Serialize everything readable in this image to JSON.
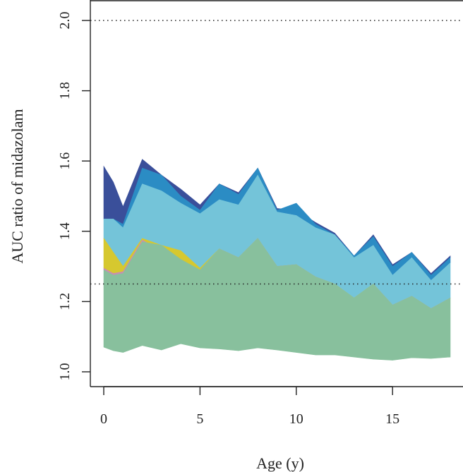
{
  "chart_data": {
    "type": "area",
    "xlabel": "Age (y)",
    "ylabel": "AUC ratio of midazolam",
    "xlim": [
      -0.7,
      18.7
    ],
    "ylim": [
      0.96,
      2.04
    ],
    "x_ticks": [
      0,
      5,
      10,
      15
    ],
    "y_ticks": [
      1.0,
      1.2,
      1.4,
      1.6,
      1.8,
      2.0
    ],
    "y_tick_labels": [
      "1.0",
      "1.2",
      "1.4",
      "1.6",
      "1.8",
      "2.0"
    ],
    "reference_lines": [
      2.0,
      1.25
    ],
    "grid": false,
    "x": [
      0,
      0.5,
      1,
      2,
      3,
      4,
      5,
      6,
      7,
      8,
      9,
      10,
      11,
      12,
      13,
      14,
      15,
      16,
      17,
      18
    ],
    "bands": [
      {
        "color": "#3a4f9a",
        "upper": [
          1.585,
          1.54,
          1.47,
          1.605,
          1.56,
          1.52,
          1.475,
          1.535,
          1.51,
          1.58,
          1.465,
          1.46,
          1.425,
          1.395,
          1.33,
          1.39,
          1.305,
          1.34,
          1.28,
          1.33
        ],
        "lower": [
          1.435,
          1.435,
          1.42,
          1.56,
          1.54,
          1.49,
          1.46,
          1.5,
          1.485,
          1.56,
          1.46,
          1.455,
          1.42,
          1.39,
          1.325,
          1.38,
          1.3,
          1.335,
          1.275,
          1.325
        ]
      },
      {
        "color": "#2b8cc4",
        "upper": [
          1.435,
          1.435,
          1.42,
          1.58,
          1.56,
          1.5,
          1.46,
          1.535,
          1.505,
          1.58,
          1.46,
          1.48,
          1.42,
          1.39,
          1.33,
          1.385,
          1.3,
          1.34,
          1.275,
          1.325
        ],
        "lower": [
          1.435,
          1.435,
          1.41,
          1.535,
          1.515,
          1.48,
          1.45,
          1.49,
          1.475,
          1.56,
          1.455,
          1.445,
          1.41,
          1.39,
          1.325,
          1.36,
          1.275,
          1.325,
          1.26,
          1.31
        ]
      },
      {
        "color": "#74c4d9",
        "upper": [
          1.435,
          1.435,
          1.41,
          1.535,
          1.515,
          1.48,
          1.45,
          1.49,
          1.475,
          1.56,
          1.455,
          1.445,
          1.41,
          1.39,
          1.325,
          1.36,
          1.275,
          1.325,
          1.26,
          1.31
        ],
        "lower": [
          1.38,
          1.34,
          1.3,
          1.375,
          1.36,
          1.345,
          1.295,
          1.35,
          1.325,
          1.38,
          1.3,
          1.305,
          1.27,
          1.25,
          1.21,
          1.25,
          1.19,
          1.215,
          1.18,
          1.21
        ]
      },
      {
        "color": "#d6c82f",
        "upper": [
          1.38,
          1.34,
          1.3,
          1.38,
          1.36,
          1.345,
          1.295,
          1.35,
          1.325,
          1.38,
          1.3,
          1.305,
          1.27,
          1.25,
          1.21,
          1.25,
          1.19,
          1.215,
          1.18,
          1.21
        ],
        "lower": [
          1.295,
          1.28,
          1.285,
          1.375,
          1.345,
          1.315,
          1.285,
          1.35,
          1.325,
          1.38,
          1.3,
          1.305,
          1.27,
          1.25,
          1.205,
          1.25,
          1.19,
          1.215,
          1.18,
          1.21
        ]
      },
      {
        "color": "#c88fb0",
        "upper": [
          1.295,
          1.28,
          1.285,
          1.375,
          1.345,
          1.32,
          1.285,
          1.35,
          1.325,
          1.38,
          1.3,
          1.305,
          1.27,
          1.25,
          1.205,
          1.25,
          1.19,
          1.215,
          1.18,
          1.21
        ],
        "lower": [
          1.29,
          1.275,
          1.28,
          1.37,
          1.34,
          1.31,
          1.28,
          1.35,
          1.325,
          1.38,
          1.3,
          1.305,
          1.27,
          1.25,
          1.205,
          1.25,
          1.19,
          1.215,
          1.18,
          1.21
        ]
      },
      {
        "color": "#88c09d",
        "upper": [
          1.29,
          1.275,
          1.28,
          1.37,
          1.36,
          1.32,
          1.29,
          1.35,
          1.325,
          1.38,
          1.3,
          1.305,
          1.27,
          1.25,
          1.21,
          1.25,
          1.19,
          1.215,
          1.18,
          1.21
        ],
        "lower": [
          1.07,
          1.06,
          1.055,
          1.075,
          1.062,
          1.08,
          1.068,
          1.065,
          1.06,
          1.068,
          1.062,
          1.055,
          1.048,
          1.048,
          1.042,
          1.036,
          1.033,
          1.04,
          1.038,
          1.042
        ]
      }
    ]
  }
}
